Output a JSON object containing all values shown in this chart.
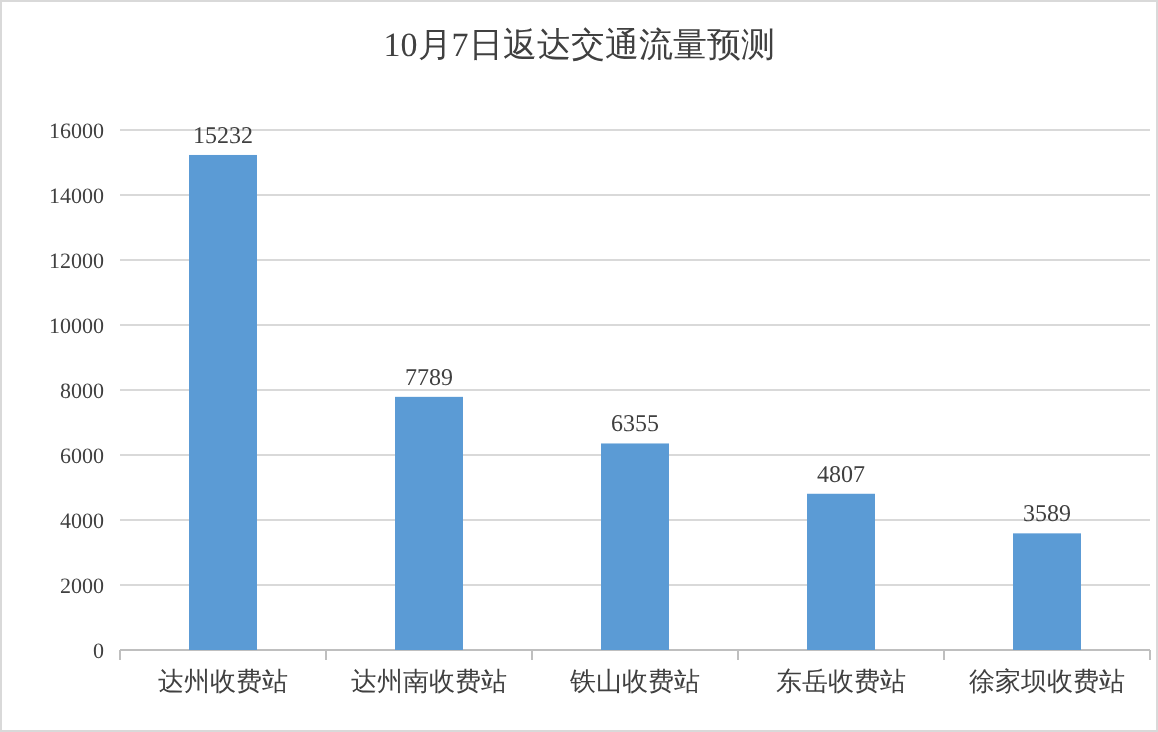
{
  "chart_data": {
    "type": "bar",
    "title": "10月7日返达交通流量预测",
    "categories": [
      "达州收费站",
      "达州南收费站",
      "铁山收费站",
      "东岳收费站",
      "徐家坝收费站"
    ],
    "values": [
      15232,
      7789,
      6355,
      4807,
      3589
    ],
    "color": "#5b9bd5",
    "ylim": [
      0,
      16000
    ],
    "yticks": [
      0,
      2000,
      4000,
      6000,
      8000,
      10000,
      12000,
      14000,
      16000
    ],
    "grid": "y",
    "data_labels": true
  }
}
